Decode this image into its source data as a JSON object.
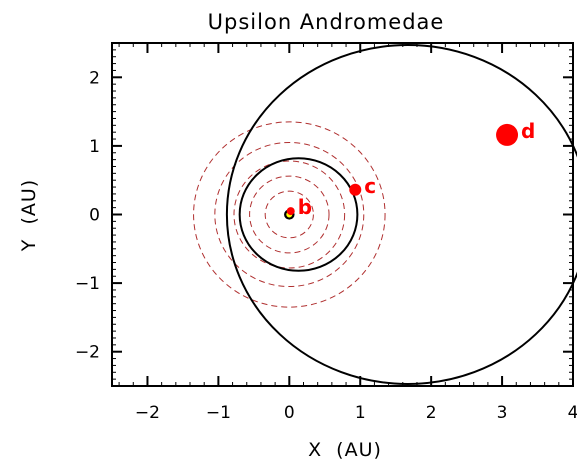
{
  "chart_data": {
    "type": "scatter",
    "title": "Upsilon Andromedae",
    "xlabel": "X  (AU)",
    "ylabel": "Y  (AU)",
    "xlim": [
      -2.5,
      4.0
    ],
    "ylim": [
      -2.5,
      2.5
    ],
    "xticks": [
      -2,
      -1,
      0,
      1,
      2,
      3,
      4
    ],
    "xtick_labels": [
      "−2",
      "−1",
      "0",
      "1",
      "2",
      "3",
      "4"
    ],
    "yticks": [
      -2,
      -1,
      0,
      1,
      2
    ],
    "ytick_labels": [
      "−2",
      "−1",
      "0",
      "1",
      "2"
    ],
    "grid": false,
    "star": {
      "x": 0,
      "y": 0,
      "color": "#ffff00"
    },
    "orbits": [
      {
        "planet": "b",
        "cx": 0.0,
        "cy": 0.0,
        "a": 0.06,
        "b": 0.06,
        "style": "solid",
        "color": "#000000"
      },
      {
        "planet": "c",
        "cx": 0.13,
        "cy": 0.0,
        "a": 0.83,
        "b": 0.82,
        "style": "solid",
        "color": "#000000"
      },
      {
        "planet": "d",
        "cx": 1.67,
        "cy": 0.0,
        "a": 2.55,
        "b": 2.47,
        "style": "solid",
        "color": "#000000"
      }
    ],
    "reference_circles": {
      "cx": 0,
      "cy": 0,
      "radii": [
        0.34,
        0.56,
        0.78,
        1.05,
        1.35
      ],
      "style": "dashed",
      "color": "#b03030"
    },
    "planets": [
      {
        "label": "b",
        "x": 0.02,
        "y": 0.05,
        "size": 4,
        "color": "#ff0000"
      },
      {
        "label": "c",
        "x": 0.93,
        "y": 0.36,
        "size": 6,
        "color": "#ff0000"
      },
      {
        "label": "d",
        "x": 3.07,
        "y": 1.16,
        "size": 11,
        "color": "#ff0000"
      }
    ]
  }
}
